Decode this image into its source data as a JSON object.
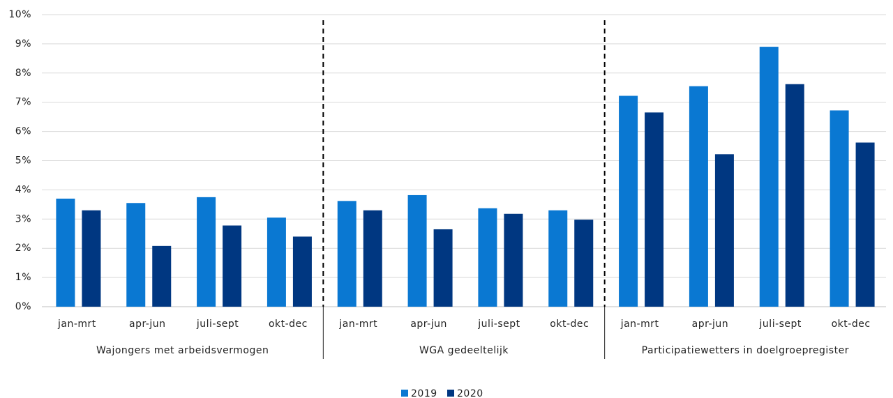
{
  "chart_data": {
    "type": "bar",
    "categories": [
      "jan-mrt",
      "apr-jun",
      "juli-sept",
      "okt-dec",
      "jan-mrt",
      "apr-jun",
      "juli-sept",
      "okt-dec",
      "jan-mrt",
      "apr-jun",
      "juli-sept",
      "okt-dec"
    ],
    "groups": [
      "Wajongers met arbeidsvermogen",
      "WGA gedeeltelijk",
      "Participatiewetters in doelgroepregister"
    ],
    "series": [
      {
        "name": "2019",
        "color": "#0a78d2",
        "values": [
          3.7,
          3.55,
          3.75,
          3.05,
          3.62,
          3.82,
          3.37,
          3.3,
          7.22,
          7.55,
          8.9,
          6.72
        ]
      },
      {
        "name": "2020",
        "color": "#003781",
        "values": [
          3.3,
          2.08,
          2.78,
          2.4,
          3.3,
          2.65,
          3.18,
          2.98,
          6.65,
          5.22,
          7.62,
          5.62
        ]
      }
    ],
    "ylim": [
      0,
      10
    ],
    "yticks": [
      {
        "value": 0,
        "label": "0%"
      },
      {
        "value": 1,
        "label": "1%"
      },
      {
        "value": 2,
        "label": "2%"
      },
      {
        "value": 3,
        "label": "3%"
      },
      {
        "value": 4,
        "label": "4%"
      },
      {
        "value": 5,
        "label": "5%"
      },
      {
        "value": 6,
        "label": "6%"
      },
      {
        "value": 7,
        "label": "7%"
      },
      {
        "value": 8,
        "label": "8%"
      },
      {
        "value": 9,
        "label": "9%"
      },
      {
        "value": 10,
        "label": "10%"
      }
    ],
    "grid": true,
    "legend": "bottom"
  }
}
